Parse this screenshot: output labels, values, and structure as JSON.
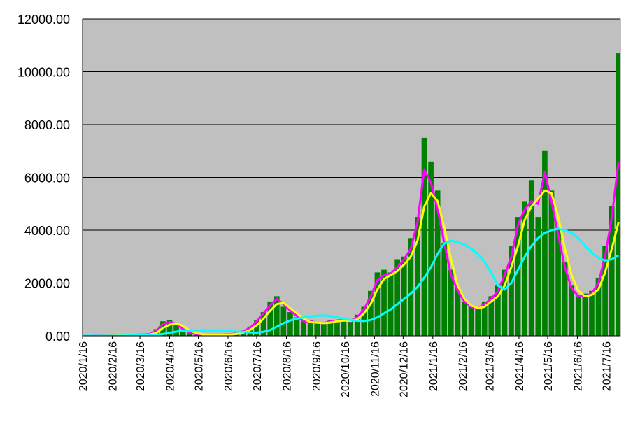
{
  "chart_data": {
    "type": "bar",
    "x": [
      "2020/1/16",
      "2020/1/23",
      "2020/1/30",
      "2020/2/6",
      "2020/2/13",
      "2020/2/20",
      "2020/2/27",
      "2020/3/5",
      "2020/3/12",
      "2020/3/19",
      "2020/3/26",
      "2020/4/2",
      "2020/4/9",
      "2020/4/16",
      "2020/4/23",
      "2020/4/30",
      "2020/5/7",
      "2020/5/14",
      "2020/5/21",
      "2020/5/28",
      "2020/6/4",
      "2020/6/11",
      "2020/6/18",
      "2020/6/25",
      "2020/7/2",
      "2020/7/9",
      "2020/7/16",
      "2020/7/23",
      "2020/7/30",
      "2020/8/6",
      "2020/8/13",
      "2020/8/20",
      "2020/8/27",
      "2020/9/3",
      "2020/9/10",
      "2020/9/17",
      "2020/9/24",
      "2020/10/1",
      "2020/10/8",
      "2020/10/15",
      "2020/10/22",
      "2020/10/29",
      "2020/11/5",
      "2020/11/12",
      "2020/11/19",
      "2020/11/26",
      "2020/12/3",
      "2020/12/10",
      "2020/12/17",
      "2020/12/24",
      "2020/12/31",
      "2021/1/7",
      "2021/1/14",
      "2021/1/21",
      "2021/1/28",
      "2021/2/4",
      "2021/2/11",
      "2021/2/18",
      "2021/2/25",
      "2021/3/4",
      "2021/3/11",
      "2021/3/18",
      "2021/3/25",
      "2021/4/1",
      "2021/4/8",
      "2021/4/15",
      "2021/4/22",
      "2021/4/29",
      "2021/5/6",
      "2021/5/13",
      "2021/5/20",
      "2021/5/27",
      "2021/6/3",
      "2021/6/10",
      "2021/6/17",
      "2021/6/24",
      "2021/7/1",
      "2021/7/8",
      "2021/7/15",
      "2021/7/22",
      "2021/7/29"
    ],
    "series": [
      {
        "type": "bar",
        "color": "#008000",
        "values": [
          0,
          0,
          5,
          5,
          10,
          20,
          20,
          40,
          50,
          40,
          100,
          250,
          550,
          600,
          400,
          200,
          100,
          50,
          30,
          40,
          40,
          40,
          50,
          100,
          200,
          350,
          600,
          900,
          1300,
          1500,
          1100,
          900,
          700,
          550,
          600,
          500,
          450,
          600,
          600,
          650,
          550,
          800,
          1100,
          1700,
          2400,
          2500,
          2400,
          2900,
          3000,
          3700,
          4500,
          7500,
          6600,
          5500,
          3500,
          2500,
          1800,
          1300,
          1100,
          1100,
          1300,
          1500,
          1900,
          2500,
          3400,
          4500,
          5100,
          5900,
          4500,
          7000,
          5500,
          4000,
          2800,
          1900,
          1500,
          1600,
          1700,
          2200,
          3400,
          4900,
          10700
        ]
      },
      {
        "type": "line",
        "color": "#ff00ff",
        "values": [
          0,
          0,
          2,
          4,
          8,
          14,
          18,
          30,
          40,
          45,
          60,
          180,
          450,
          520,
          450,
          250,
          120,
          60,
          35,
          40,
          40,
          45,
          60,
          90,
          180,
          300,
          550,
          850,
          1150,
          1400,
          1200,
          950,
          750,
          550,
          550,
          500,
          480,
          550,
          580,
          600,
          550,
          700,
          1000,
          1500,
          2100,
          2300,
          2350,
          2600,
          2900,
          3300,
          4300,
          6300,
          5800,
          4800,
          3500,
          2300,
          1700,
          1300,
          1100,
          1050,
          1200,
          1400,
          1700,
          2300,
          3000,
          4200,
          4800,
          5100,
          5000,
          6200,
          5100,
          3800,
          2600,
          1800,
          1500,
          1500,
          1600,
          2000,
          3000,
          4500,
          6600
        ]
      },
      {
        "type": "line",
        "color": "#ffff00",
        "values": [
          0,
          0,
          0,
          2,
          5,
          10,
          15,
          22,
          32,
          40,
          50,
          100,
          300,
          420,
          470,
          380,
          200,
          100,
          50,
          38,
          40,
          42,
          50,
          70,
          120,
          220,
          400,
          650,
          950,
          1200,
          1250,
          1050,
          850,
          650,
          520,
          500,
          480,
          500,
          550,
          580,
          570,
          620,
          850,
          1200,
          1750,
          2150,
          2300,
          2450,
          2700,
          3000,
          3600,
          4900,
          5400,
          5100,
          4100,
          2900,
          1900,
          1400,
          1150,
          1050,
          1100,
          1300,
          1500,
          1900,
          2600,
          3400,
          4400,
          4900,
          5200,
          5500,
          5400,
          4500,
          3300,
          2300,
          1700,
          1500,
          1550,
          1750,
          2400,
          3300,
          4300
        ]
      },
      {
        "type": "line",
        "color": "#00ffff",
        "values": [
          0,
          0,
          0,
          0,
          0,
          0,
          5,
          10,
          15,
          20,
          25,
          40,
          70,
          120,
          160,
          190,
          200,
          200,
          200,
          200,
          200,
          190,
          180,
          160,
          150,
          130,
          120,
          150,
          220,
          350,
          480,
          580,
          650,
          700,
          730,
          760,
          770,
          750,
          700,
          650,
          600,
          570,
          560,
          600,
          700,
          850,
          1000,
          1200,
          1400,
          1600,
          1850,
          2200,
          2600,
          3100,
          3500,
          3600,
          3550,
          3450,
          3300,
          3100,
          2800,
          2400,
          1900,
          1750,
          2000,
          2500,
          3000,
          3400,
          3700,
          3900,
          4000,
          4050,
          4000,
          3900,
          3700,
          3400,
          3150,
          2950,
          2850,
          2900,
          3050
        ]
      }
    ],
    "xlim": [
      "2020/1/16",
      "2021/7/31"
    ],
    "xticks": [
      "2020/1/16",
      "2020/2/16",
      "2020/3/16",
      "2020/4/16",
      "2020/5/16",
      "2020/6/16",
      "2020/7/16",
      "2020/8/16",
      "2020/9/16",
      "2020/10/16",
      "2020/11/16",
      "2020/12/16",
      "2021/1/16",
      "2021/2/16",
      "2021/3/16",
      "2021/4/16",
      "2021/5/16",
      "2021/6/16",
      "2021/7/16"
    ],
    "ylim": [
      0,
      12000
    ],
    "yticks": [
      {
        "value": 0,
        "label": "0.00"
      },
      {
        "value": 2000,
        "label": "2000.00"
      },
      {
        "value": 4000,
        "label": "4000.00"
      },
      {
        "value": 6000,
        "label": "6000.00"
      },
      {
        "value": 8000,
        "label": "8000.00"
      },
      {
        "value": 10000,
        "label": "10000.00"
      },
      {
        "value": 12000,
        "label": "12000.00"
      }
    ],
    "grid": true,
    "background": "#c0c0c0"
  }
}
